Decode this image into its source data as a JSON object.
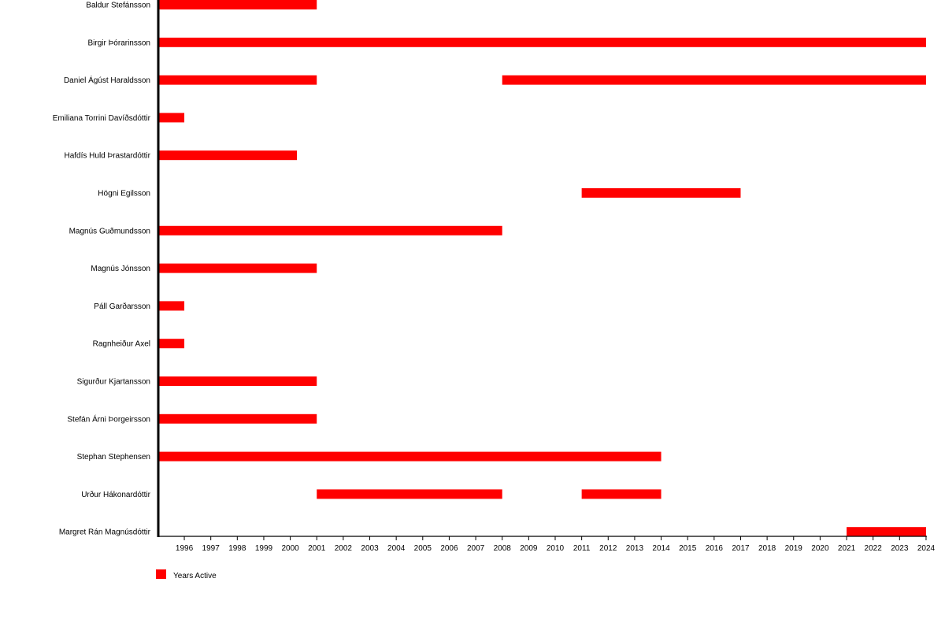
{
  "chart_data": {
    "type": "bar",
    "orientation": "horizontal-timeline",
    "title": "",
    "xlabel": "",
    "ylabel": "",
    "xlim": [
      1995,
      2024
    ],
    "x_ticks": [
      1996,
      1997,
      1998,
      1999,
      2000,
      2001,
      2002,
      2003,
      2004,
      2005,
      2006,
      2007,
      2008,
      2009,
      2010,
      2011,
      2012,
      2013,
      2014,
      2015,
      2016,
      2017,
      2018,
      2019,
      2020,
      2021,
      2022,
      2023,
      2024
    ],
    "grid": false,
    "legend": {
      "placement": "bottom-left",
      "entries": [
        {
          "label": "Years Active",
          "color": "#ff0000"
        }
      ]
    },
    "series": [
      {
        "name": "Years Active",
        "color": "#ff0000"
      }
    ],
    "rows": [
      {
        "name": "Baldur Stefánsson",
        "spans": [
          [
            1995,
            2001
          ]
        ]
      },
      {
        "name": "Birgir Þórarinsson",
        "spans": [
          [
            1995,
            2024
          ]
        ]
      },
      {
        "name": "Daniel Ágúst Haraldsson",
        "spans": [
          [
            1995,
            2001
          ],
          [
            2008,
            2024
          ]
        ]
      },
      {
        "name": "Emiliana Torrini Davíðsdóttir",
        "spans": [
          [
            1995,
            1996
          ]
        ]
      },
      {
        "name": "Hafdís Huld Þrastardóttir",
        "spans": [
          [
            1995,
            2000.25
          ]
        ]
      },
      {
        "name": "Högni Egilsson",
        "spans": [
          [
            2011,
            2017
          ]
        ]
      },
      {
        "name": "Magnús Guðmundsson",
        "spans": [
          [
            1995,
            2008
          ]
        ]
      },
      {
        "name": "Magnús Jónsson",
        "spans": [
          [
            1995,
            2001
          ]
        ]
      },
      {
        "name": "Páll Garðarsson",
        "spans": [
          [
            1995,
            1996
          ]
        ]
      },
      {
        "name": "Ragnheiður Axel",
        "spans": [
          [
            1995,
            1996
          ]
        ]
      },
      {
        "name": "Sigurður Kjartansson",
        "spans": [
          [
            1995,
            2001
          ]
        ]
      },
      {
        "name": "Stefán Árni Þorgeirsson",
        "spans": [
          [
            1995,
            2001
          ]
        ]
      },
      {
        "name": "Stephan Stephensen",
        "spans": [
          [
            1995,
            2014
          ]
        ]
      },
      {
        "name": "Urður Hákonardóttir",
        "spans": [
          [
            2001,
            2008
          ],
          [
            2011,
            2014
          ]
        ]
      },
      {
        "name": "Margret Rán Magnúsdóttir",
        "spans": [
          [
            2021,
            2024
          ]
        ]
      }
    ]
  }
}
